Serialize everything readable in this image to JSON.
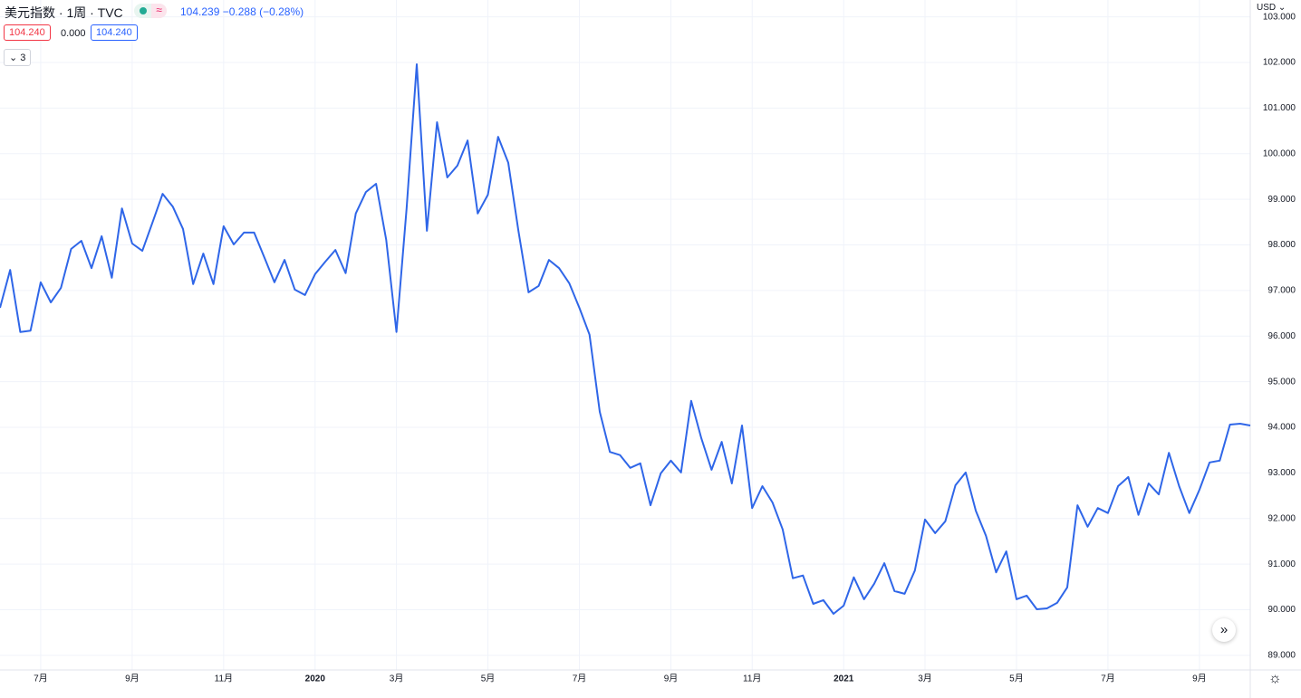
{
  "header": {
    "symbol": "美元指数 · 1周 · TVC",
    "price": "104.239",
    "change": "−0.288",
    "change_pct": "(−0.28%)",
    "bid": "104.240",
    "spread": "0.000",
    "ask": "104.240",
    "indicators": "3",
    "currency": "USD"
  },
  "chart_data": {
    "type": "line",
    "categories": [
      null,
      null,
      null,
      null,
      "7月",
      null,
      null,
      null,
      null,
      null,
      null,
      null,
      null,
      "9月",
      null,
      null,
      null,
      null,
      null,
      null,
      null,
      null,
      "11月",
      null,
      null,
      null,
      null,
      null,
      null,
      null,
      null,
      "2020",
      null,
      null,
      null,
      null,
      null,
      null,
      null,
      "3月",
      null,
      null,
      null,
      null,
      null,
      null,
      null,
      null,
      "5月",
      null,
      null,
      null,
      null,
      null,
      null,
      null,
      null,
      "7月",
      null,
      null,
      null,
      null,
      null,
      null,
      null,
      null,
      "9月",
      null,
      null,
      null,
      null,
      null,
      null,
      null,
      "11月",
      null,
      null,
      null,
      null,
      null,
      null,
      null,
      null,
      "2021",
      null,
      null,
      null,
      null,
      null,
      null,
      null,
      "3月",
      null,
      null,
      null,
      null,
      null,
      null,
      null,
      null,
      "5月",
      null,
      null,
      null,
      null,
      null,
      null,
      null,
      null,
      "7月",
      null,
      null,
      null,
      null,
      null,
      null,
      null,
      null,
      "9月",
      null,
      null,
      null,
      null,
      null
    ],
    "series": [
      {
        "name": "美元指数",
        "color": "#2f66e8",
        "values": [
          96.62,
          97.45,
          96.09,
          96.12,
          97.18,
          96.74,
          97.06,
          97.91,
          98.09,
          97.49,
          98.19,
          97.28,
          98.8,
          98.03,
          97.87,
          98.49,
          99.12,
          98.84,
          98.35,
          97.14,
          97.81,
          97.14,
          98.41,
          98.01,
          98.27,
          98.27,
          97.73,
          97.18,
          97.67,
          97.02,
          96.9,
          97.36,
          97.63,
          97.89,
          97.38,
          98.69,
          99.16,
          99.34,
          98.11,
          96.09,
          98.8,
          101.96,
          98.31,
          100.69,
          99.48,
          99.74,
          100.29,
          98.69,
          99.1,
          100.37,
          99.8,
          98.31,
          96.96,
          97.1,
          97.67,
          97.49,
          97.16,
          96.62,
          96.03,
          94.34,
          93.46,
          93.39,
          93.11,
          93.21,
          92.29,
          92.99,
          93.27,
          93.01,
          94.58,
          93.76,
          93.07,
          93.68,
          92.77,
          94.04,
          92.23,
          92.71,
          92.35,
          91.76,
          90.69,
          90.75,
          90.13,
          90.21,
          89.91,
          90.09,
          90.71,
          90.23,
          90.57,
          91.02,
          90.41,
          90.35,
          90.86,
          91.98,
          91.68,
          91.94,
          92.73,
          93.01,
          92.17,
          91.62,
          90.82,
          91.28,
          90.23,
          90.31,
          90.01,
          90.03,
          90.15,
          90.49,
          92.29,
          91.82,
          92.23,
          92.12,
          92.71,
          92.91,
          92.08,
          92.77,
          92.53,
          93.44,
          92.71,
          92.12,
          92.63,
          93.23,
          93.27,
          94.06,
          94.08,
          94.04
        ]
      }
    ],
    "ylim": [
      88.68,
      103.37
    ],
    "yticks": [
      {
        "value": 89,
        "label": "89.000"
      },
      {
        "value": 90,
        "label": "90.000"
      },
      {
        "value": 91,
        "label": "91.000"
      },
      {
        "value": 92,
        "label": "92.000"
      },
      {
        "value": 93,
        "label": "93.000"
      },
      {
        "value": 94,
        "label": "94.000"
      },
      {
        "value": 95,
        "label": "95.000"
      },
      {
        "value": 96,
        "label": "96.000"
      },
      {
        "value": 97,
        "label": "97.000"
      },
      {
        "value": 98,
        "label": "98.000"
      },
      {
        "value": 99,
        "label": "99.000"
      },
      {
        "value": 100,
        "label": "100.000"
      },
      {
        "value": 101,
        "label": "101.000"
      },
      {
        "value": 102,
        "label": "102.000"
      },
      {
        "value": 103,
        "label": "103.000"
      }
    ],
    "grid": true
  }
}
